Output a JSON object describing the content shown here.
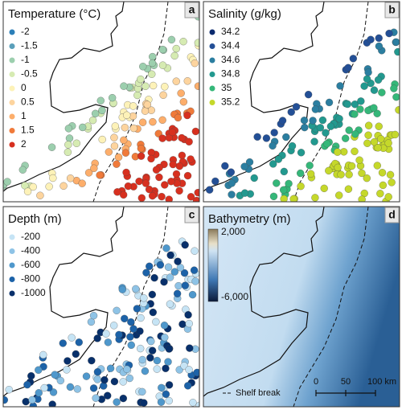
{
  "panels": [
    {
      "letter": "a",
      "title": "Temperature (°C)",
      "legend": [
        {
          "label": "-2",
          "color": "#2c7fb8"
        },
        {
          "label": "-1.5",
          "color": "#5a9fba"
        },
        {
          "label": "-1",
          "color": "#9ccfae"
        },
        {
          "label": "-0.5",
          "color": "#d6ebb2"
        },
        {
          "label": "0",
          "color": "#fdf2b8"
        },
        {
          "label": "0.5",
          "color": "#fdd49e"
        },
        {
          "label": "1",
          "color": "#fdae6b"
        },
        {
          "label": "1.5",
          "color": "#f07a3a"
        },
        {
          "label": "2",
          "color": "#d7301f"
        }
      ]
    },
    {
      "letter": "b",
      "title": "Salinity (g/kg)",
      "legend": [
        {
          "label": "34.2",
          "color": "#0b2a6e"
        },
        {
          "label": "34.4",
          "color": "#234f96"
        },
        {
          "label": "34.6",
          "color": "#2b7ea0"
        },
        {
          "label": "34.8",
          "color": "#22998f"
        },
        {
          "label": "35",
          "color": "#35b779"
        },
        {
          "label": "35.2",
          "color": "#c5d82a"
        }
      ]
    },
    {
      "letter": "c",
      "title": "Depth (m)",
      "legend": [
        {
          "label": "-200",
          "color": "#c6e4f5"
        },
        {
          "label": "-400",
          "color": "#8ec3e6"
        },
        {
          "label": "-600",
          "color": "#4f98cc"
        },
        {
          "label": "-800",
          "color": "#1c62a8"
        },
        {
          "label": "-1000",
          "color": "#08306b"
        }
      ]
    },
    {
      "letter": "d",
      "title": "Bathymetry (m)",
      "colorbar": {
        "max_label": "2,000",
        "min_label": "-6,000"
      },
      "shelf_break_label": "Shelf break",
      "scale_bar": [
        "0",
        "50",
        "100 km"
      ]
    }
  ]
}
